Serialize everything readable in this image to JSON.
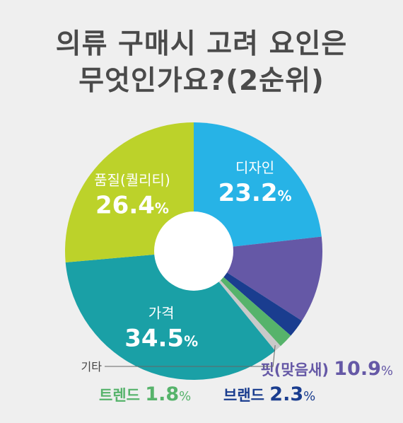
{
  "title_line1": "의류 구매시 고려 요인은",
  "title_line2": "무엇인가요?(2순위)",
  "chart_data": {
    "type": "pie",
    "style": "donut",
    "title": "의류 구매시 고려 요인은 무엇인가요?(2순위)",
    "unit": "%",
    "categories": [
      "디자인",
      "핏(맞음새)",
      "브랜드",
      "트렌드",
      "기타",
      "가격",
      "품질(퀄리티)"
    ],
    "values": [
      23.2,
      10.9,
      2.3,
      1.8,
      0.9,
      34.5,
      26.4
    ],
    "value_labels": [
      "23.2",
      "10.9",
      "2.3",
      "1.8",
      "",
      "34.5",
      "26.4"
    ],
    "colors": [
      "#27b3e6",
      "#6558a6",
      "#1a3d8f",
      "#56b36b",
      "#c9c9c9",
      "#1aa0a6",
      "#bcd22a"
    ],
    "label_colors": [
      "#ffffff",
      "#6558a6",
      "#1a3d8f",
      "#56b36b",
      "#444444",
      "#ffffff",
      "#ffffff"
    ],
    "grid": false,
    "legend": "none"
  }
}
